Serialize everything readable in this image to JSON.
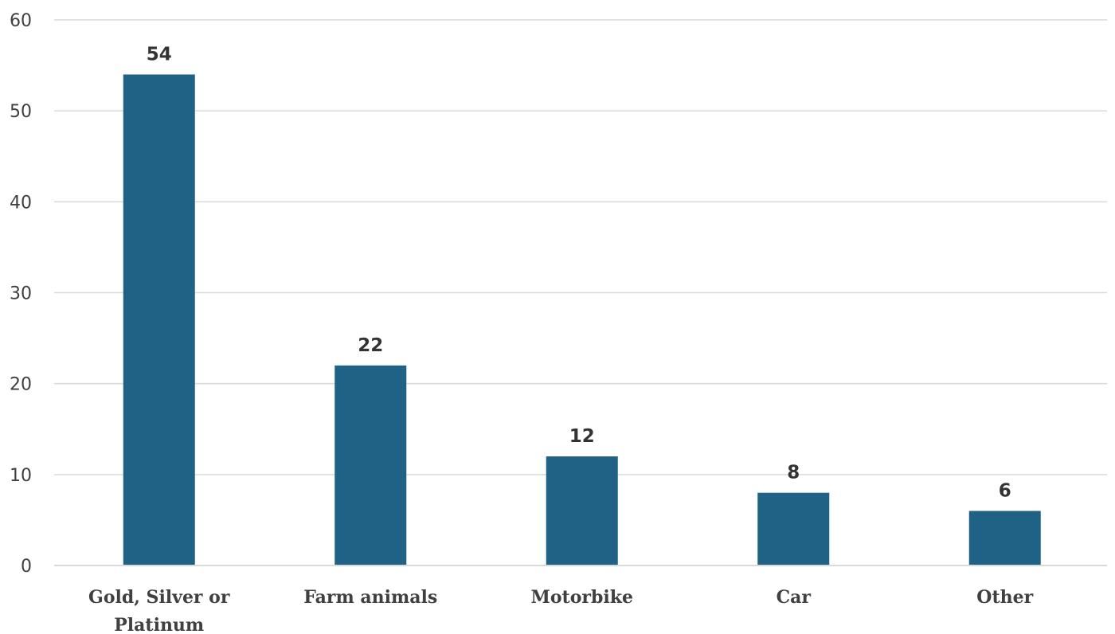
{
  "chart_data": {
    "type": "bar",
    "title": "",
    "xlabel": "",
    "ylabel": "",
    "categories": [
      [
        "Gold, Silver or",
        "Platinum"
      ],
      [
        "Farm animals"
      ],
      [
        "Motorbike"
      ],
      [
        "Car"
      ],
      [
        "Other"
      ]
    ],
    "values": [
      54,
      22,
      12,
      8,
      6
    ],
    "ylim": [
      0,
      60
    ],
    "yticks": [
      0,
      10,
      20,
      30,
      40,
      50,
      60
    ],
    "grid": true,
    "legend": "none",
    "bar_color": "#1f6286",
    "data_labels": [
      "54",
      "22",
      "12",
      "8",
      "6"
    ]
  }
}
